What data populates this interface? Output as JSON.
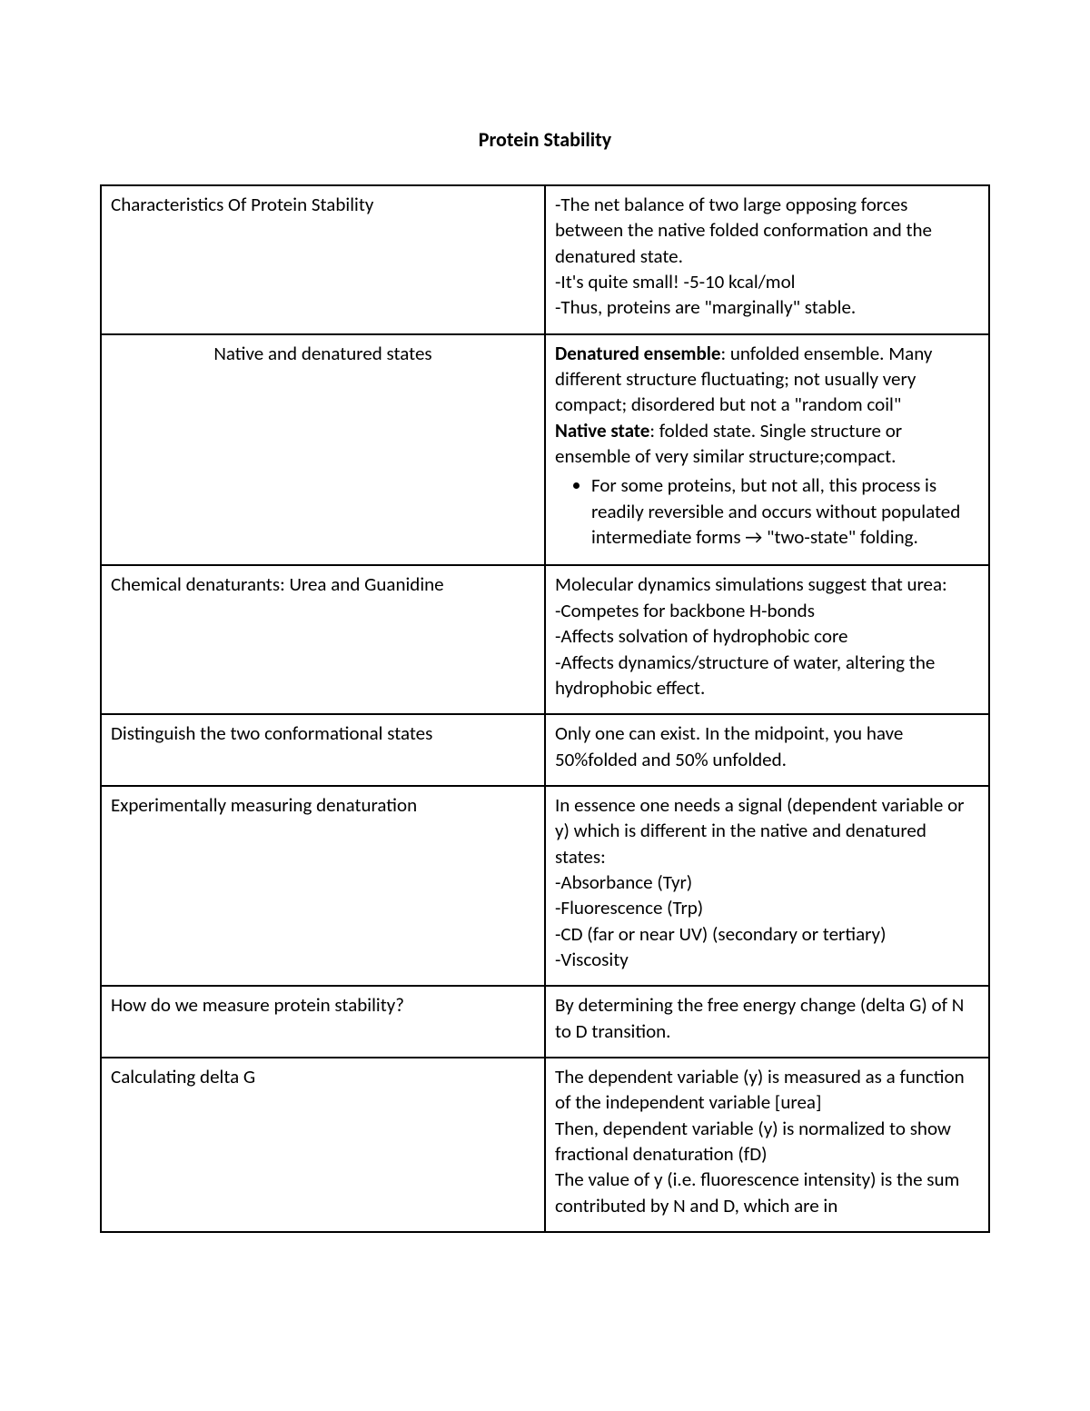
{
  "title": "Protein Stability",
  "rows": [
    {
      "left_align": "left",
      "left": "Characteristics Of Protein Stability",
      "right": {
        "lines": [
          "-The net balance of two large opposing forces between the native folded conformation and the denatured state.",
          "-It's quite small! -5-10 kcal/mol",
          "-Thus, proteins are \"marginally\" stable."
        ]
      }
    },
    {
      "left_align": "center",
      "left": "Native and denatured states",
      "right": {
        "segments": [
          {
            "bold": "Denatured ensemble",
            "rest": ": unfolded ensemble. Many different structure fluctuating; not usually very compact; disordered but not a \"random coil\""
          },
          {
            "bold": "Native state",
            "rest": ": folded state. Single structure or ensemble of very similar structure;compact."
          }
        ],
        "bullet": "For some proteins, but not all, this process is readily reversible and occurs without populated intermediate forms → \"two-state\" folding."
      }
    },
    {
      "left_align": "left",
      "left": "Chemical denaturants: Urea and Guanidine",
      "right": {
        "lines": [
          "Molecular dynamics simulations suggest that urea:",
          "-Competes for backbone H-bonds",
          "-Affects solvation of hydrophobic core",
          "-Affects dynamics/structure of water, altering the hydrophobic effect."
        ]
      }
    },
    {
      "left_align": "left",
      "left": "Distinguish the two conformational states",
      "right": {
        "lines": [
          "Only one can exist. In the midpoint, you have 50%folded and 50% unfolded."
        ]
      }
    },
    {
      "left_align": "left",
      "left": "Experimentally measuring denaturation",
      "right": {
        "lines": [
          "In essence one needs a signal (dependent variable or y) which is different in the native and denatured states:",
          "-Absorbance (Tyr)",
          "-Fluorescence (Trp)",
          "-CD (far or near UV) (secondary or tertiary)",
          "-Viscosity"
        ]
      }
    },
    {
      "left_align": "left",
      "left": "How do we measure protein stability?",
      "right": {
        "lines": [
          "By determining the free energy change (delta G) of N to D transition."
        ]
      }
    },
    {
      "left_align": "left",
      "left": "Calculating delta G",
      "right": {
        "lines": [
          "The dependent variable (y) is measured as a function of the independent variable [urea]",
          "Then, dependent variable (y) is normalized to show fractional denaturation (fD)",
          "The value of y (i.e. fluorescence intensity) is the sum contributed by N and D, which are in"
        ]
      }
    }
  ]
}
